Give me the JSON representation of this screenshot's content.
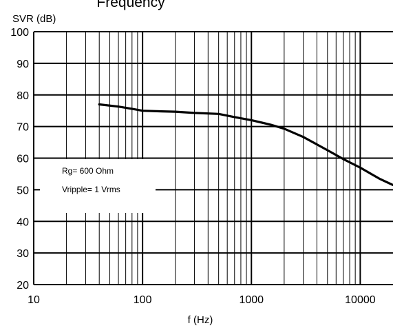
{
  "chart_data": {
    "type": "line",
    "title": "Frequency",
    "xlabel": "f (Hz)",
    "ylabel": "SVR (dB)",
    "x_scale": "log",
    "xlim": [
      10,
      20000
    ],
    "ylim": [
      20,
      100
    ],
    "x_ticks": [
      10,
      100,
      1000,
      10000
    ],
    "x_tick_labels": [
      "10",
      "100",
      "1000",
      "10000"
    ],
    "y_ticks": [
      20,
      30,
      40,
      50,
      60,
      70,
      80,
      90,
      100
    ],
    "y_tick_labels": [
      "20",
      "30",
      "40",
      "50",
      "60",
      "70",
      "80",
      "90",
      "100"
    ],
    "grid": true,
    "annotations": [
      "Rg= 600 Ohm",
      "Vripple= 1 Vrms"
    ],
    "series": [
      {
        "x": [
          40,
          60,
          80,
          100,
          150,
          200,
          300,
          500,
          700,
          1000,
          1500,
          2000,
          3000,
          5000,
          7000,
          10000,
          15000,
          20000
        ],
        "y": [
          77,
          76.3,
          75.6,
          75.0,
          74.8,
          74.7,
          74.3,
          74.0,
          73.0,
          72.0,
          70.6,
          69.3,
          66.7,
          62.5,
          59.7,
          57.0,
          53.5,
          51.5
        ]
      }
    ]
  },
  "style": {
    "line_color": "#000000",
    "grid_color": "#000000",
    "background": "#ffffff"
  }
}
